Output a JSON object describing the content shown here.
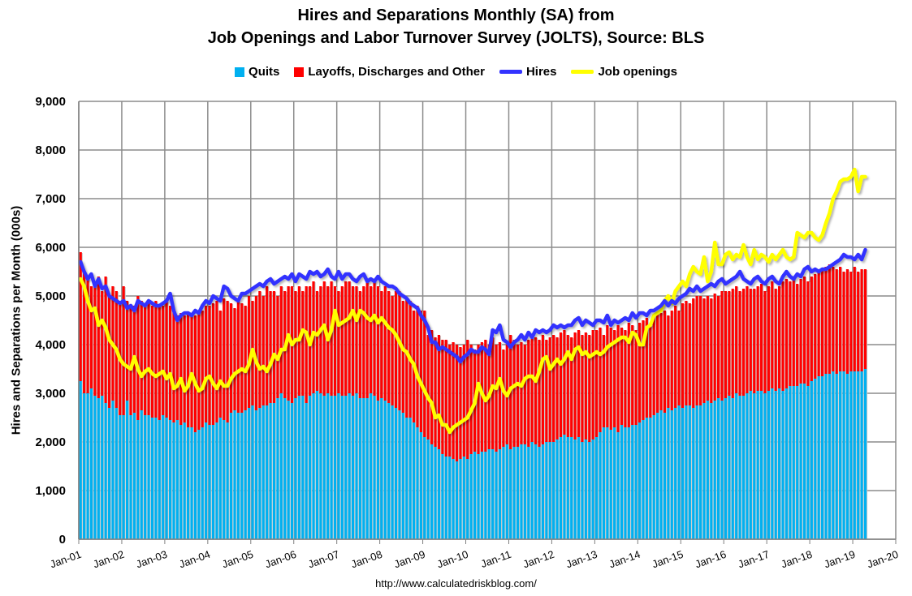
{
  "chart_data": {
    "type": "bar+line",
    "title": "Hires and Separations Monthly (SA) from",
    "subtitle": "Job Openings and Labor Turnover Survey (JOLTS), Source: BLS",
    "ylabel": "Hires and Separations per Month (000s)",
    "xlabel": "",
    "ylim": [
      0,
      9000
    ],
    "yticks": [
      "0",
      "1,000",
      "2,000",
      "3,000",
      "4,000",
      "5,000",
      "6,000",
      "7,000",
      "8,000",
      "9,000"
    ],
    "xticks": [
      "Jan-01",
      "Jan-02",
      "Jan-03",
      "Jan-04",
      "Jan-05",
      "Jan-06",
      "Jan-07",
      "Jan-08",
      "Jan-09",
      "Jan-10",
      "Jan-11",
      "Jan-12",
      "Jan-13",
      "Jan-14",
      "Jan-15",
      "Jan-16",
      "Jan-17",
      "Jan-18",
      "Jan-19",
      "Jan-20"
    ],
    "x_start": "Jan-01",
    "x_frequency": "monthly",
    "grid": true,
    "legend_position": "top",
    "colors": {
      "quits": "#00b0f0",
      "layoffs": "#ff0000",
      "hires": "#3333ff",
      "openings": "#ffff00"
    },
    "series": [
      {
        "name": "Quits",
        "type": "stacked-bar",
        "values": [
          3250,
          3000,
          3000,
          3100,
          2950,
          2900,
          2950,
          2800,
          2700,
          2850,
          2700,
          2550,
          2550,
          2850,
          2550,
          2600,
          2450,
          2650,
          2550,
          2550,
          2500,
          2500,
          2450,
          2550,
          2500,
          2450,
          2400,
          2450,
          2350,
          2400,
          2300,
          2300,
          2200,
          2250,
          2300,
          2400,
          2350,
          2350,
          2400,
          2500,
          2450,
          2400,
          2600,
          2650,
          2600,
          2600,
          2650,
          2700,
          2750,
          2650,
          2700,
          2750,
          2750,
          2800,
          2800,
          2900,
          3000,
          2900,
          2850,
          2800,
          2900,
          2950,
          2950,
          2800,
          2950,
          3000,
          3050,
          3000,
          2950,
          3000,
          2950,
          2950,
          3000,
          2950,
          2950,
          3000,
          2950,
          3000,
          2900,
          2900,
          2900,
          3000,
          2950,
          2850,
          2900,
          2850,
          2800,
          2750,
          2700,
          2650,
          2600,
          2500,
          2500,
          2400,
          2300,
          2200,
          2100,
          2050,
          1950,
          1900,
          1850,
          1750,
          1700,
          1700,
          1650,
          1600,
          1650,
          1700,
          1650,
          1750,
          1800,
          1750,
          1800,
          1800,
          1850,
          1850,
          1800,
          1850,
          1900,
          1950,
          1850,
          1900,
          1900,
          1950,
          1950,
          1900,
          2000,
          1950,
          1900,
          1950,
          2000,
          2000,
          2000,
          2050,
          2100,
          2150,
          2100,
          2100,
          2050,
          2100,
          2000,
          2050,
          2000,
          2050,
          2100,
          2200,
          2300,
          2300,
          2250,
          2300,
          2200,
          2350,
          2300,
          2300,
          2350,
          2350,
          2400,
          2450,
          2500,
          2500,
          2550,
          2600,
          2650,
          2600,
          2700,
          2650,
          2700,
          2750,
          2700,
          2750,
          2750,
          2700,
          2750,
          2750,
          2800,
          2850,
          2800,
          2850,
          2900,
          2850,
          2900,
          2950,
          2900,
          3000,
          2950,
          2950,
          3000,
          3050,
          3000,
          3050,
          3050,
          3000,
          3050,
          3100,
          3050,
          3100,
          3050,
          3100,
          3150,
          3150,
          3150,
          3200,
          3200,
          3150,
          3250,
          3300,
          3350,
          3350,
          3400,
          3400,
          3450,
          3400,
          3450,
          3450,
          3400,
          3450,
          3450,
          3450,
          3450,
          3500
        ]
      },
      {
        "name": "Layoffs, Discharges and Other",
        "type": "stacked-bar",
        "note_total_separations_top": true,
        "values_total": [
          5900,
          5500,
          5400,
          5200,
          5300,
          5400,
          5100,
          5400,
          5000,
          5200,
          5100,
          4900,
          5200,
          4900,
          4800,
          4800,
          5000,
          4900,
          4800,
          4900,
          4800,
          4900,
          4800,
          4800,
          4900,
          4800,
          4700,
          4600,
          4650,
          4600,
          4650,
          4600,
          4600,
          4700,
          4700,
          4800,
          4800,
          4850,
          4900,
          4700,
          4950,
          4900,
          4850,
          4750,
          4900,
          4850,
          4800,
          5000,
          4900,
          5000,
          5100,
          5000,
          5200,
          5100,
          5100,
          5000,
          5200,
          5100,
          5200,
          5200,
          5100,
          5200,
          5100,
          5200,
          5200,
          5300,
          5100,
          5200,
          5300,
          5200,
          5300,
          5200,
          5100,
          5200,
          5300,
          5300,
          5200,
          5200,
          5100,
          5200,
          5300,
          5200,
          5300,
          5200,
          5100,
          5200,
          5100,
          5000,
          5100,
          5100,
          4900,
          4950,
          4900,
          4700,
          4800,
          4700,
          4700,
          4200,
          4300,
          4150,
          4200,
          4100,
          4100,
          4000,
          4050,
          4000,
          3950,
          4000,
          4100,
          4000,
          3900,
          4000,
          4050,
          4100,
          4000,
          4150,
          4000,
          4050,
          3900,
          4000,
          4200,
          4100,
          4000,
          4050,
          4000,
          4100,
          4150,
          4150,
          4100,
          4200,
          4100,
          4150,
          4200,
          4150,
          4250,
          4300,
          4200,
          4150,
          4250,
          4300,
          4200,
          4250,
          4200,
          4300,
          4300,
          4350,
          4200,
          4400,
          4350,
          4300,
          4400,
          4350,
          4300,
          4450,
          4400,
          4300,
          4450,
          4500,
          4550,
          4400,
          4600,
          4650,
          4650,
          4700,
          4600,
          4700,
          4800,
          4700,
          4850,
          4900,
          4850,
          4950,
          5000,
          5000,
          4950,
          5000,
          4950,
          5050,
          5000,
          5100,
          5100,
          5100,
          5150,
          5200,
          5100,
          5150,
          5200,
          5150,
          5150,
          5200,
          5250,
          5100,
          5200,
          5300,
          5150,
          5200,
          5300,
          5350,
          5300,
          5400,
          5250,
          5350,
          5400,
          5300,
          5400,
          5450,
          5500,
          5550,
          5600,
          5650,
          5600,
          5550,
          5600,
          5500,
          5550,
          5500,
          5600,
          5500,
          5550,
          5550
        ]
      },
      {
        "name": "Hires",
        "type": "line",
        "values": [
          5700,
          5500,
          5350,
          5450,
          5200,
          5350,
          5150,
          5200,
          5000,
          4950,
          4900,
          4850,
          4900,
          4750,
          4800,
          4700,
          4900,
          4850,
          4800,
          4900,
          4850,
          4800,
          4800,
          4850,
          4900,
          5050,
          4700,
          4500,
          4600,
          4650,
          4650,
          4600,
          4700,
          4650,
          4800,
          4900,
          4850,
          5000,
          4950,
          4900,
          5200,
          5150,
          5000,
          4950,
          4900,
          5050,
          5050,
          5100,
          5150,
          5200,
          5250,
          5200,
          5300,
          5350,
          5250,
          5300,
          5350,
          5400,
          5350,
          5450,
          5300,
          5450,
          5400,
          5350,
          5500,
          5450,
          5500,
          5400,
          5450,
          5550,
          5400,
          5350,
          5500,
          5350,
          5450,
          5450,
          5350,
          5300,
          5400,
          5450,
          5300,
          5350,
          5300,
          5400,
          5300,
          5250,
          5200,
          5200,
          5150,
          5050,
          5000,
          4950,
          4850,
          4800,
          4750,
          4600,
          4500,
          4350,
          4050,
          4050,
          3900,
          3950,
          3900,
          3850,
          3800,
          3750,
          3650,
          3750,
          3800,
          3900,
          3850,
          3850,
          3950,
          3900,
          3800,
          4300,
          4250,
          4400,
          4100,
          4050,
          3950,
          4050,
          4100,
          4200,
          4100,
          4250,
          4150,
          4300,
          4250,
          4300,
          4250,
          4300,
          4400,
          4350,
          4400,
          4350,
          4400,
          4400,
          4500,
          4550,
          4400,
          4500,
          4450,
          4400,
          4500,
          4500,
          4450,
          4600,
          4400,
          4500,
          4450,
          4500,
          4550,
          4500,
          4650,
          4550,
          4650,
          4650,
          4600,
          4700,
          4700,
          4750,
          4800,
          4900,
          4800,
          4900,
          4850,
          4950,
          5000,
          5050,
          5150,
          5100,
          5200,
          5100,
          5150,
          5200,
          5250,
          5200,
          5300,
          5350,
          5250,
          5300,
          5350,
          5400,
          5500,
          5350,
          5300,
          5250,
          5350,
          5400,
          5300,
          5250,
          5350,
          5400,
          5300,
          5250,
          5400,
          5500,
          5400,
          5350,
          5450,
          5400,
          5550,
          5600,
          5500,
          5550,
          5500,
          5550,
          5550,
          5600,
          5650,
          5700,
          5750,
          5850,
          5800,
          5800,
          5750,
          5850,
          5750,
          5950
        ]
      },
      {
        "name": "Job openings",
        "type": "line",
        "values": [
          5350,
          5200,
          4900,
          4700,
          4750,
          4400,
          4500,
          4350,
          4100,
          4000,
          3900,
          3700,
          3600,
          3550,
          3500,
          3750,
          3500,
          3350,
          3450,
          3500,
          3400,
          3350,
          3400,
          3450,
          3300,
          3400,
          3100,
          3150,
          3300,
          3050,
          3150,
          3400,
          3200,
          3050,
          3100,
          3300,
          3350,
          3200,
          3100,
          3250,
          3150,
          3150,
          3300,
          3400,
          3450,
          3500,
          3450,
          3600,
          3900,
          3650,
          3500,
          3550,
          3450,
          3600,
          3800,
          3700,
          3900,
          3900,
          4200,
          4000,
          4100,
          4100,
          4300,
          4250,
          4000,
          4250,
          4200,
          4300,
          4400,
          4100,
          4300,
          4700,
          4400,
          4450,
          4500,
          4550,
          4700,
          4500,
          4700,
          4650,
          4550,
          4500,
          4600,
          4450,
          4550,
          4450,
          4350,
          4300,
          4200,
          4050,
          3900,
          3850,
          3700,
          3600,
          3350,
          3200,
          3050,
          2900,
          2800,
          2500,
          2550,
          2350,
          2350,
          2200,
          2300,
          2350,
          2400,
          2450,
          2500,
          2650,
          2800,
          3200,
          3000,
          2850,
          2950,
          3150,
          3100,
          3300,
          3050,
          2950,
          3100,
          3150,
          3200,
          3150,
          3300,
          3350,
          3350,
          3250,
          3450,
          3700,
          3750,
          3500,
          3600,
          3700,
          3600,
          3700,
          3850,
          3700,
          3900,
          3950,
          3800,
          3850,
          3750,
          3800,
          3850,
          3800,
          3850,
          3950,
          4000,
          4050,
          4100,
          4150,
          4150,
          4050,
          4250,
          4200,
          4000,
          4000,
          4350,
          4400,
          4600,
          4650,
          4700,
          4900,
          5000,
          4850,
          5100,
          5200,
          5300,
          5200,
          5450,
          5600,
          5500,
          5450,
          5800,
          5300,
          5500,
          6100,
          5650,
          5650,
          5850,
          5900,
          5750,
          5850,
          5800,
          6050,
          5800,
          5650,
          5950,
          5750,
          5850,
          5800,
          5700,
          5850,
          5750,
          5850,
          5950,
          5800,
          5750,
          5800,
          6300,
          6250,
          6200,
          6300,
          6300,
          6200,
          6150,
          6250,
          6500,
          6700,
          7000,
          7150,
          7350,
          7400,
          7400,
          7450,
          7600,
          7150,
          7450,
          7450
        ]
      }
    ]
  },
  "legend": {
    "quits": "Quits",
    "layoffs": "Layoffs, Discharges and Other",
    "hires": "Hires",
    "openings": "Job openings"
  },
  "footer": {
    "url": "http://www.calculatedriskblog.com/"
  }
}
